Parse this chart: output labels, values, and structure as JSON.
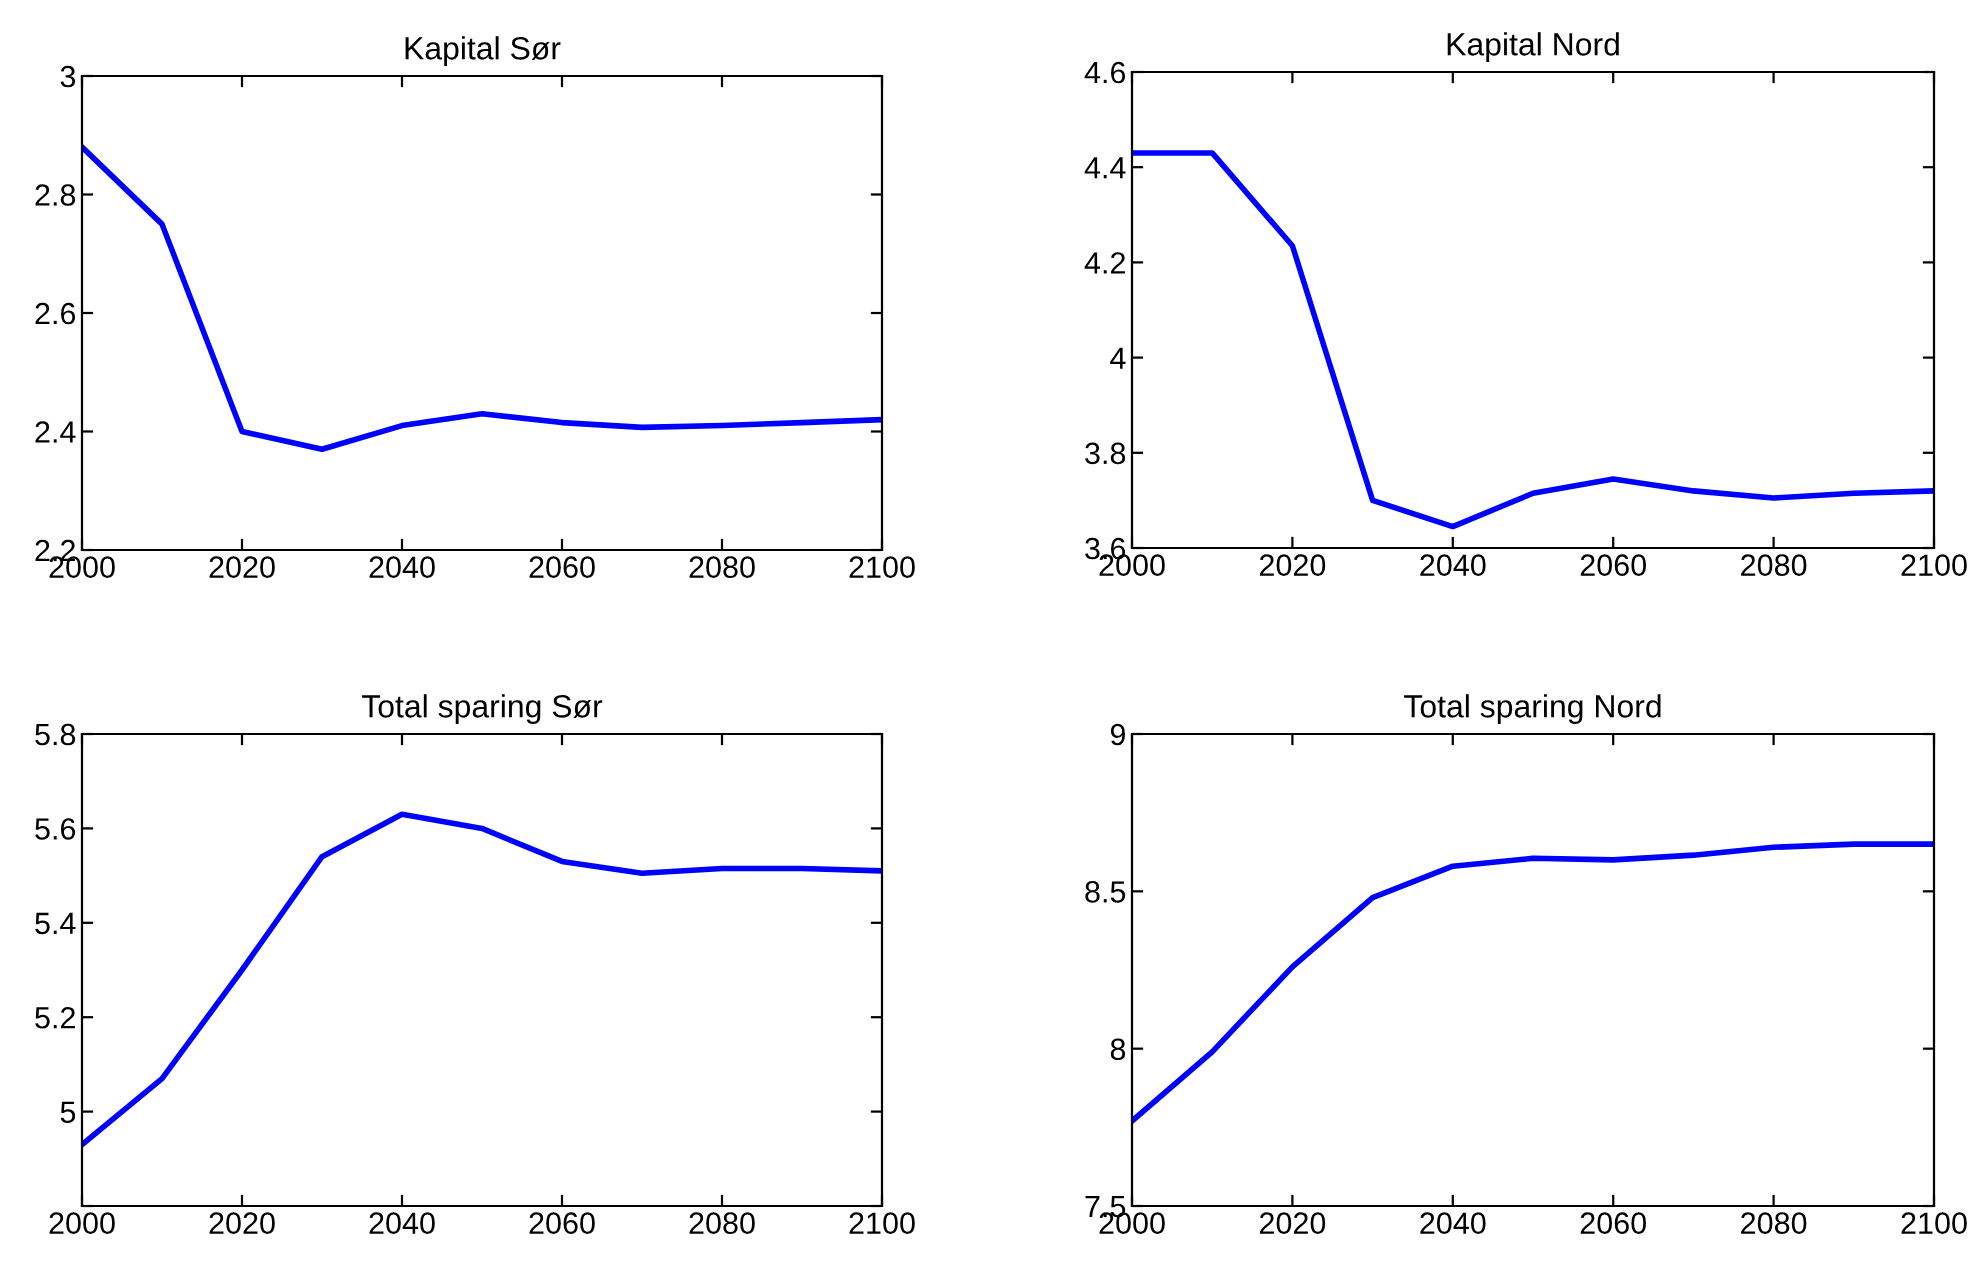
{
  "chart_data": [
    {
      "type": "line",
      "title": "Kapital Sør",
      "x": [
        2000,
        2010,
        2020,
        2030,
        2040,
        2050,
        2060,
        2070,
        2080,
        2090,
        2100
      ],
      "series": [
        {
          "color": "#0000ff",
          "values": [
            2.88,
            2.75,
            2.4,
            2.37,
            2.41,
            2.43,
            2.415,
            2.407,
            2.41,
            2.415,
            2.42
          ]
        }
      ],
      "xlim": [
        2000,
        2100
      ],
      "xticks": [
        2000,
        2020,
        2040,
        2060,
        2080,
        2100
      ],
      "ylim": [
        2.2,
        3
      ],
      "yticks": [
        2.2,
        2.4,
        2.6,
        2.8,
        3
      ]
    },
    {
      "type": "line",
      "title": "Kapital Nord",
      "x": [
        2000,
        2010,
        2020,
        2030,
        2040,
        2050,
        2060,
        2070,
        2080,
        2090,
        2100
      ],
      "series": [
        {
          "color": "#0000ff",
          "values": [
            4.43,
            4.43,
            4.235,
            3.7,
            3.645,
            3.715,
            3.745,
            3.72,
            3.705,
            3.715,
            3.72
          ]
        }
      ],
      "xlim": [
        2000,
        2100
      ],
      "xticks": [
        2000,
        2020,
        2040,
        2060,
        2080,
        2100
      ],
      "ylim": [
        3.6,
        4.6
      ],
      "yticks": [
        3.6,
        3.8,
        4,
        4.2,
        4.4,
        4.6
      ]
    },
    {
      "type": "line",
      "title": "Total sparing Sør",
      "x": [
        2000,
        2010,
        2020,
        2030,
        2040,
        2050,
        2060,
        2070,
        2080,
        2090,
        2100
      ],
      "series": [
        {
          "color": "#0000ff",
          "values": [
            4.93,
            5.07,
            5.3,
            5.54,
            5.63,
            5.6,
            5.53,
            5.505,
            5.515,
            5.515,
            5.51
          ]
        }
      ],
      "xlim": [
        2000,
        2100
      ],
      "xticks": [
        2000,
        2020,
        2040,
        2060,
        2080,
        2100
      ],
      "ylim": [
        4.8,
        5.8
      ],
      "yticks": [
        {
          "value": 4.8,
          "label": null
        },
        5,
        5.2,
        5.4,
        5.6,
        5.8
      ]
    },
    {
      "type": "line",
      "title": "Total sparing Nord",
      "x": [
        2000,
        2010,
        2020,
        2030,
        2040,
        2050,
        2060,
        2070,
        2080,
        2090,
        2100
      ],
      "series": [
        {
          "color": "#0000ff",
          "values": [
            7.77,
            7.99,
            8.26,
            8.48,
            8.58,
            8.605,
            8.6,
            8.615,
            8.64,
            8.65,
            8.65
          ]
        }
      ],
      "xlim": [
        2000,
        2100
      ],
      "xticks": [
        2000,
        2020,
        2040,
        2060,
        2080,
        2100
      ],
      "ylim": [
        7.5,
        9
      ],
      "yticks": [
        7.5,
        8,
        8.5,
        9
      ]
    }
  ]
}
